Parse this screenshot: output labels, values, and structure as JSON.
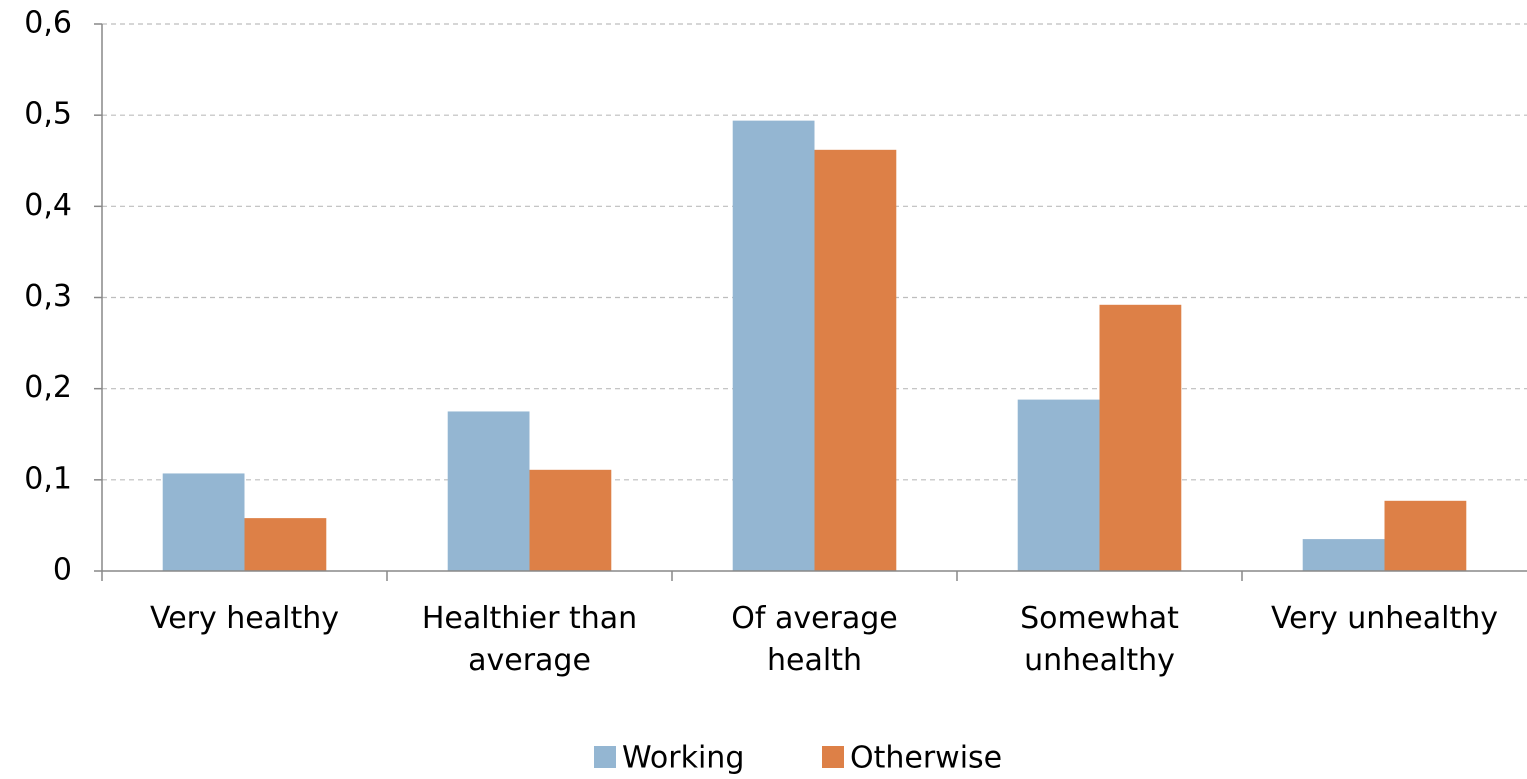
{
  "chart_data": {
    "type": "bar",
    "categories": [
      "Very healthy",
      "Healthier than average",
      "Of average health",
      "Somewhat unhealthy",
      "Very unhealthy"
    ],
    "series": [
      {
        "name": "Working",
        "color": "#94b6d2",
        "values": [
          0.107,
          0.175,
          0.494,
          0.188,
          0.035
        ]
      },
      {
        "name": "Otherwise",
        "color": "#dd8047",
        "values": [
          0.058,
          0.111,
          0.462,
          0.292,
          0.077
        ]
      }
    ],
    "ylim": [
      0,
      0.6
    ],
    "yticks": [
      0,
      {
        "value": 0.1,
        "label": "0,1"
      },
      {
        "value": 0.2,
        "label": "0,2"
      },
      {
        "value": 0.3,
        "label": "0,3"
      },
      {
        "value": 0.4,
        "label": "0,4"
      },
      {
        "value": 0.5,
        "label": "0,5"
      },
      {
        "value": 0.6,
        "label": "0,6"
      }
    ],
    "grid": true,
    "legend": "bottom"
  }
}
